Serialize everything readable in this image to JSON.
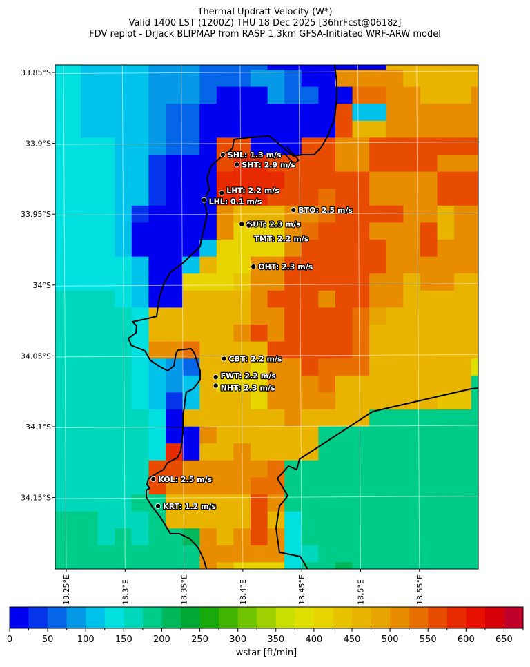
{
  "title": {
    "line1": "Thermal Updraft Velocity (W*)",
    "line2": "Valid 1400 LST (1200Z) THU 18 Dec 2025 [36hrFcst@0618z]",
    "line3": "FDV replot - DrJack BLIPMAP from RASP 1.3km GFSA-Initiated WRF-ARW model"
  },
  "map": {
    "lat_ticks": [
      "33.85°S",
      "33.9°S",
      "33.95°S",
      "34°S",
      "34.05°S",
      "34.1°S",
      "34.15°S"
    ],
    "lon_ticks": [
      "18.25°E",
      "18.3°E",
      "18.35°E",
      "18.4°E",
      "18.45°E",
      "18.5°E",
      "18.55°E"
    ],
    "coastline_color": "#000000",
    "gridline_color": "#ffffff",
    "wstar_grid_bins": [
      "55444433322220000000iiiiiii",
      "55444433322233200kkkkiiiii",
      "554444333200032200llkkiiiki",
      "55444432200000000m44kkkkkkk",
      "55444432200000000mii kkkkkkk",
      "5555443220mm000mmkkmmmmmmm",
      "5555441000mnnmmmmkkmmmmkkk",
      "5555441000nnnnmmmmmkkkkmmm",
      "5555441000nnnmmmlmmkkkkmmm",
      "5555410000kiiikklmmmmkkikk",
      "5555400000kgggklmmmkkkmikk",
      "5555400004ggggkmmmmmkkmkkk",
      "55555400 4iggkkmmmmmmkkkkkk",
      "55555400gggh kkmmmmmkkikkii",
      "66665400iiiikmmmkmmkkiiiii",
      "666665iiiiiikkmmmmljiiiiii",
      "666665iiiiikmkmmmmliiiiiii",
      "666665kkliiiimmmmmliiiiiii",
      "6666654 32iiigkkmllliiiiiif",
      "66666543 4igggkkkliiiiiiii7",
      "66666541 4iiigkkkkiiiiiihh7",
      "66666650iiiiiikiiii7777777",
      "666666500kiiiiii7777777777",
      "6666665n0iikiiii7777777777",
      "666666mmkkkkkl777777777777",
      "666666mkkkkkll777777777777",
      "6666677iiiiimk777777777777",
      "7776667iiiiimi577777777777",
      "77767677 8kikmk577777777777",
      "777777777kkkkk567777777777",
      "777777777kiggg577877777777"
    ],
    "stations": [
      {
        "id": "SHL",
        "label": "SHL: 1.3 m/s",
        "lat": -33.908,
        "lon": 18.383
      },
      {
        "id": "SHT",
        "label": "SHT: 2.9 m/s",
        "lat": -33.915,
        "lon": 18.395
      },
      {
        "id": "LHT",
        "label": "LHT: 2.2 m/s",
        "lat": -33.935,
        "lon": 18.382
      },
      {
        "id": "LHL",
        "label": "LHL: 0.1 m/s",
        "lat": -33.94,
        "lon": 18.367
      },
      {
        "id": "BTO",
        "label": "BTO: 2.5 m/s",
        "lat": -33.947,
        "lon": 18.443
      },
      {
        "id": "GUT",
        "label": "GUT: 2.3 m/s",
        "lat": -33.957,
        "lon": 18.399
      },
      {
        "id": "TMT",
        "label": "TMT: 2.2 m/s",
        "lat": -33.958,
        "lon": 18.405
      },
      {
        "id": "OHT",
        "label": "OHT: 2.3 m/s",
        "lat": -33.987,
        "lon": 18.409
      },
      {
        "id": "CBT",
        "label": "CBT: 2.2 m/s",
        "lat": -34.052,
        "lon": 18.384
      },
      {
        "id": "FWT",
        "label": "FWT: 2.2 m/s",
        "lat": -34.065,
        "lon": 18.377
      },
      {
        "id": "NHT",
        "label": "NHT: 2.3 m/s",
        "lat": -34.071,
        "lon": 18.377
      },
      {
        "id": "KOL",
        "label": "KOL: 2.5 m/s",
        "lat": -34.137,
        "lon": 18.324
      },
      {
        "id": "KRT",
        "label": "KRT: 1.2 m/s",
        "lat": -34.156,
        "lon": 18.328
      }
    ]
  },
  "colorbar": {
    "label": "wstar [ft/min]",
    "min": 0,
    "max": 675,
    "step": 25,
    "tick_labels": [
      "0",
      "50",
      "100",
      "150",
      "200",
      "250",
      "300",
      "350",
      "400",
      "450",
      "500",
      "550",
      "600",
      "650"
    ],
    "colors": [
      "#0000f0",
      "#0535ea",
      "#0565e8",
      "#0599e8",
      "#00c2ea",
      "#00e0de",
      "#00d8bc",
      "#00cc8a",
      "#00b85c",
      "#00a834",
      "#18aa0a",
      "#40b400",
      "#70c400",
      "#a0d000",
      "#c8e000",
      "#e0e000",
      "#e8d400",
      "#e8c400",
      "#e8b400",
      "#e8a400",
      "#e88c00",
      "#e87000",
      "#e84c00",
      "#e82a00",
      "#e81000",
      "#d80008",
      "#c00028"
    ]
  }
}
